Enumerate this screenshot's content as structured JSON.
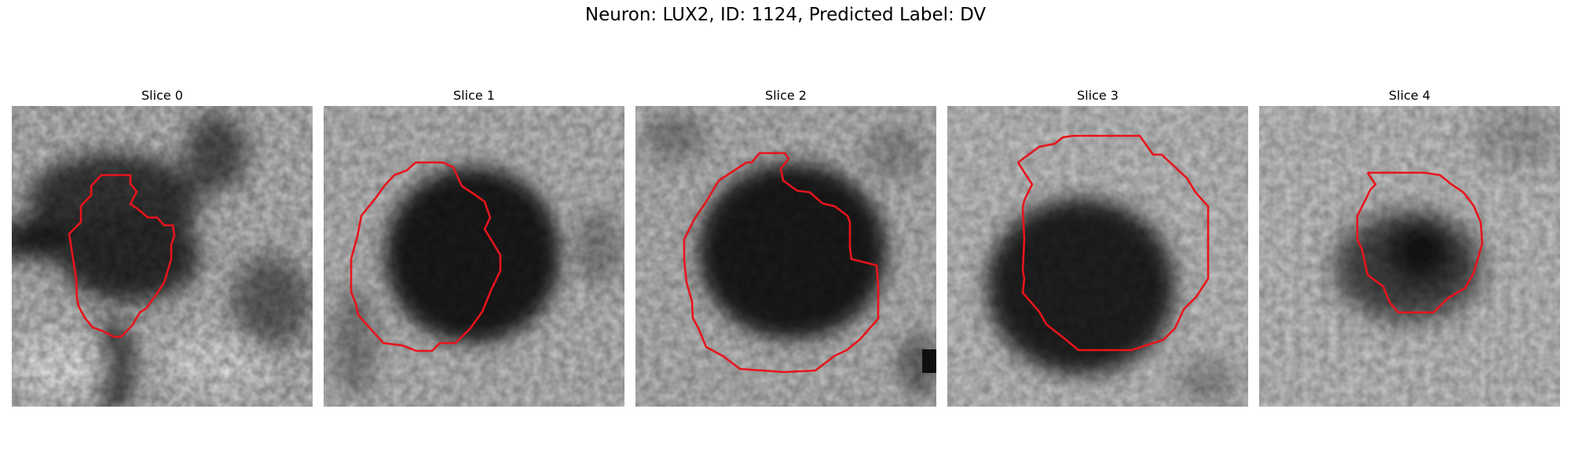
{
  "figure": {
    "title": "Neuron: LUX2, ID: 1124, Predicted Label: DV",
    "outline_color": "#e8141c"
  },
  "panels": [
    {
      "title": "Slice 0"
    },
    {
      "title": "Slice 1"
    },
    {
      "title": "Slice 2"
    },
    {
      "title": "Slice 3"
    },
    {
      "title": "Slice 4"
    }
  ]
}
